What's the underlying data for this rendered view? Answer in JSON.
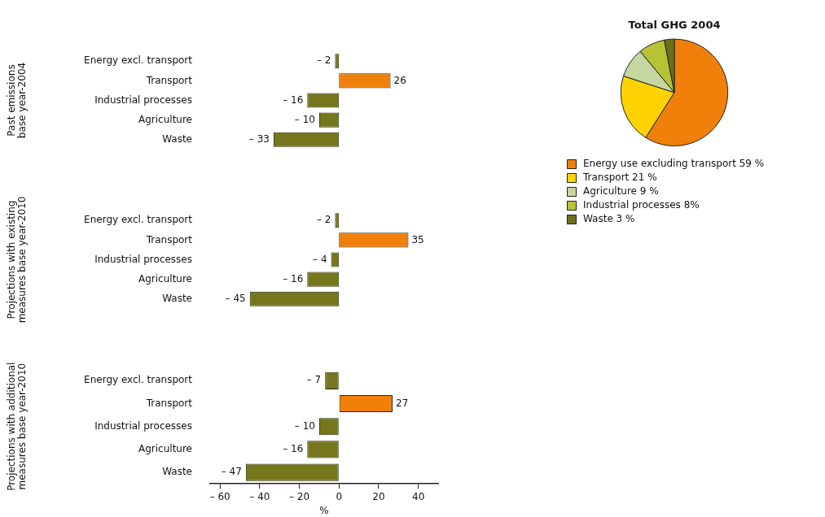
{
  "chart_data": [
    {
      "type": "bar",
      "orientation": "horizontal",
      "ylabel": "Past emissions base year-2004",
      "categories": [
        "Energy excl. transport",
        "Transport",
        "Industrial processes",
        "Agriculture",
        "Waste"
      ],
      "values": [
        -2,
        26,
        -16,
        -10,
        -33
      ],
      "colors": [
        "#76771c",
        "#f08009",
        "#76771c",
        "#76771c",
        "#76771c"
      ],
      "value_labels": [
        "– 2",
        "26",
        "– 16",
        "– 10",
        "– 33"
      ],
      "tick_labels": "y"
    },
    {
      "type": "bar",
      "orientation": "horizontal",
      "ylabel": "Projections with existing measures base year-2010",
      "categories": [
        "Energy excl. transport",
        "Transport",
        "Industrial processes",
        "Agriculture",
        "Waste"
      ],
      "values": [
        -2,
        35,
        -4,
        -16,
        -45
      ],
      "colors": [
        "#76771c",
        "#f08009",
        "#76771c",
        "#76771c",
        "#76771c"
      ],
      "value_labels": [
        "– 2",
        "35",
        "– 4",
        "– 16",
        "– 45"
      ],
      "tick_labels": "y"
    },
    {
      "type": "bar",
      "orientation": "horizontal",
      "ylabel": "Projections with additional measures base year-2010",
      "xlabel": "%",
      "categories": [
        "Energy excl. transport",
        "Transport",
        "Industrial processes",
        "Agriculture",
        "Waste"
      ],
      "values": [
        -7,
        27,
        -10,
        -16,
        -47
      ],
      "colors": [
        "#76771c",
        "#f08009",
        "#76771c",
        "#76771c",
        "#76771c"
      ],
      "value_labels": [
        "– 7",
        "27",
        "– 10",
        "– 16",
        "– 47"
      ],
      "xlim": [
        -65,
        50
      ],
      "xticks": [
        {
          "value": -60,
          "label": "– 60"
        },
        {
          "value": -40,
          "label": "– 40"
        },
        {
          "value": -20,
          "label": "– 20"
        },
        0,
        20,
        40
      ]
    },
    {
      "type": "pie",
      "title": "Total GHG 2004",
      "categories": [
        "Energy use excluding transport",
        "Transport",
        "Agriculture",
        "Industrial processes",
        "Waste"
      ],
      "values": [
        59,
        21,
        9,
        8,
        3
      ],
      "colors": [
        "#f08009",
        "#ffd200",
        "#c5d6a0",
        "#b5c334",
        "#6b7016"
      ],
      "value_labels": [
        "59 %",
        "21 %",
        "9 %",
        "8%",
        "3 %"
      ],
      "legend": "bottom"
    }
  ]
}
